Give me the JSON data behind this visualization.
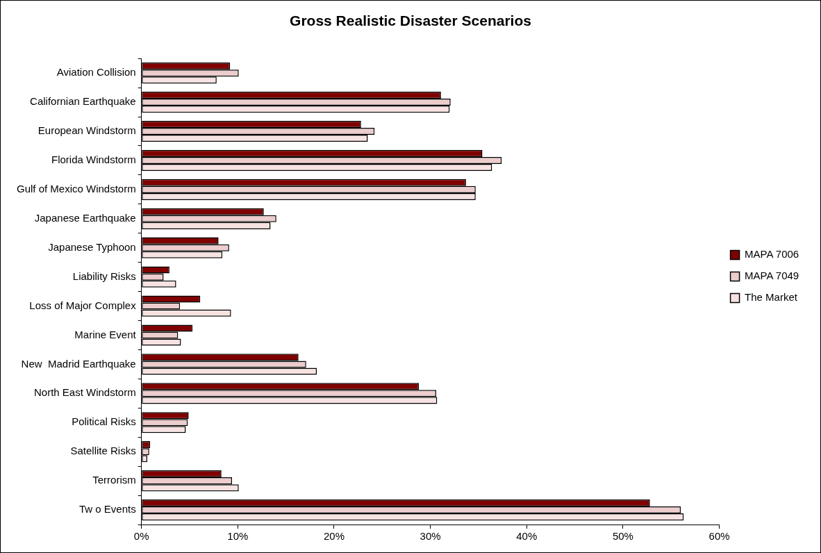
{
  "chart_data": {
    "type": "bar",
    "orientation": "horizontal",
    "title": "Gross Realistic Disaster Scenarios",
    "categories": [
      "Aviation Collision",
      "Californian Earthquake",
      "European Windstorm",
      "Florida Windstorm",
      "Gulf of Mexico Windstorm",
      "Japanese Earthquake",
      "Japanese Typhoon",
      "Liability Risks",
      "Loss of Major Complex",
      "Marine Event",
      "New  Madrid Earthquake",
      "North East Windstorm",
      "Political Risks",
      "Satellite Risks",
      "Terrorism",
      "Tw o Events"
    ],
    "series": [
      {
        "name": "MAPA 7006",
        "color": "#800000",
        "values": [
          9.2,
          31.1,
          22.8,
          35.4,
          33.7,
          12.7,
          8.0,
          2.9,
          6.1,
          5.3,
          16.3,
          28.8,
          4.9,
          0.9,
          8.3,
          52.8
        ]
      },
      {
        "name": "MAPA 7049",
        "color": "#eccccc",
        "values": [
          10.1,
          32.1,
          24.2,
          37.4,
          34.7,
          14.0,
          9.1,
          2.3,
          4.0,
          3.8,
          17.1,
          30.6,
          4.8,
          0.8,
          9.4,
          56.0
        ]
      },
      {
        "name": "The Market",
        "color": "#f7e2e2",
        "values": [
          7.8,
          32.0,
          23.5,
          36.4,
          34.7,
          13.4,
          8.4,
          3.6,
          9.3,
          4.1,
          18.2,
          30.7,
          4.6,
          0.6,
          10.1,
          56.3
        ]
      }
    ],
    "xlim": [
      0,
      60
    ],
    "xticks": [
      {
        "value": 0,
        "label": "0%"
      },
      {
        "value": 10,
        "label": "10%"
      },
      {
        "value": 20,
        "label": "20%"
      },
      {
        "value": 30,
        "label": "30%"
      },
      {
        "value": 40,
        "label": "40%"
      },
      {
        "value": 50,
        "label": "50%"
      },
      {
        "value": 60,
        "label": "60%"
      }
    ],
    "grid": false,
    "legend": "right"
  }
}
